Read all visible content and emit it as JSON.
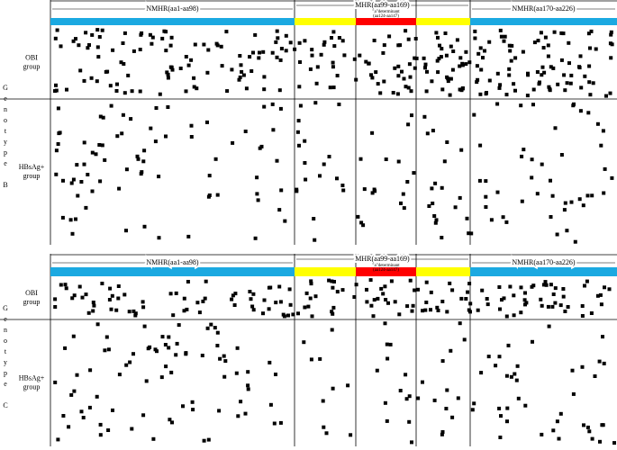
{
  "panels": [
    {
      "genotype_label": "Genotype",
      "genotype_letter": "B",
      "regions": {
        "nmhr_left": "NMHR(aa1-aa98)",
        "mhr": "MHR(aa99-aa169)",
        "a_determinant_line1": "\"a\"determinant",
        "a_determinant_line2": "(aa124-aa147)",
        "nmhr_right": "NMHR(aa170-aa226)"
      },
      "groups": [
        {
          "line1": "OBI",
          "line2": "group"
        },
        {
          "line1": "HBsAg+",
          "line2": "group"
        }
      ]
    },
    {
      "genotype_label": "Genotype",
      "genotype_letter": "C",
      "regions": {
        "nmhr_left": "NMHR(aa1-aa98)",
        "mhr": "MHR(aa99-aa169)",
        "a_determinant_line1": "\"a\"determinant",
        "a_determinant_line2": "(aa124-aa147)",
        "nmhr_right": "NMHR(aa170-aa226)"
      },
      "groups": [
        {
          "line1": "OBI",
          "line2": "group"
        },
        {
          "line1": "HBsAg+",
          "line2": "group"
        }
      ]
    }
  ]
}
